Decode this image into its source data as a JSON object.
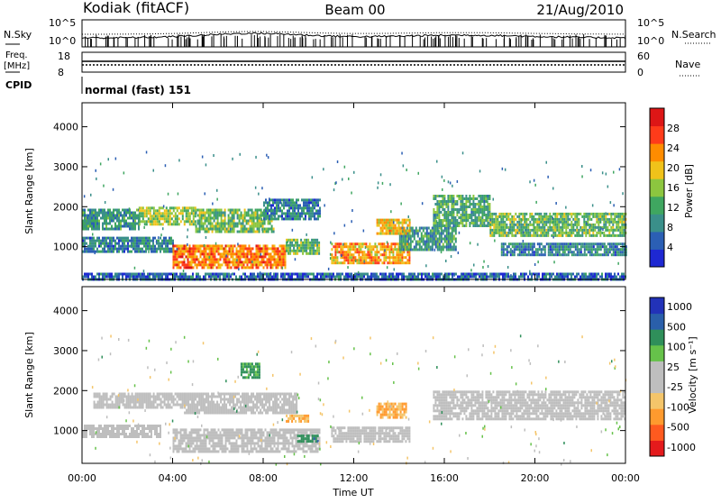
{
  "header": {
    "station": "Kodiak (fitACF)",
    "beam": "Beam 00",
    "date": "21/Aug/2010"
  },
  "top_panel": {
    "left_label": "N.Sky",
    "right_label": "N.Search",
    "left_ticks": [
      "10^5",
      "10^0"
    ],
    "right_ticks": [
      "10^5",
      "10^0"
    ]
  },
  "freq_panel": {
    "label_line1": "Freq.",
    "label_line2": "[MHz]",
    "left_ticks": [
      "18",
      "8"
    ],
    "right_label": "Nave",
    "right_ticks": [
      "60",
      "0"
    ]
  },
  "cpid": {
    "label": "CPID",
    "value": "normal (fast) 151"
  },
  "colors": {
    "power_scale": [
      "#1e28d2",
      "#2b5fb4",
      "#3a8f8a",
      "#3fa660",
      "#8cc63f",
      "#f0c21a",
      "#ff8c00",
      "#ff3b1a",
      "#dd1616"
    ],
    "velocity_scale": [
      "#e41a1c",
      "#ff5a1f",
      "#ff9a2e",
      "#f4c56a",
      "#bebebe",
      "#bebebe",
      "#66c24a",
      "#2f8f5a",
      "#2a5faa",
      "#2232b8"
    ],
    "ground_scatter": "#bebebe"
  },
  "chart_data": [
    {
      "type": "heatmap",
      "name": "power",
      "xlabel": "",
      "ylabel": "Slant Range [km]",
      "x_ticks": [
        "00:00",
        "04:00",
        "08:00",
        "12:00",
        "16:00",
        "20:00",
        "00:00"
      ],
      "xlim_hours": [
        0,
        24
      ],
      "ylim": [
        180,
        4600
      ],
      "y_ticks": [
        1000,
        2000,
        3000,
        4000
      ],
      "colorbar": {
        "label": "Power [dB]",
        "ticks": [
          4,
          8,
          12,
          16,
          20,
          24,
          28
        ],
        "range": [
          0,
          32
        ]
      },
      "regions": [
        {
          "t0": 0.0,
          "t1": 2.5,
          "r0": 1450,
          "r1": 1950,
          "power": 10
        },
        {
          "t0": 2.5,
          "t1": 5.0,
          "r0": 1550,
          "r1": 2000,
          "power": 16
        },
        {
          "t0": 5.0,
          "t1": 8.5,
          "r0": 1350,
          "r1": 1950,
          "power": 14
        },
        {
          "t0": 8.0,
          "t1": 10.5,
          "r0": 1700,
          "r1": 2200,
          "power": 8
        },
        {
          "t0": 0.0,
          "t1": 4.0,
          "r0": 850,
          "r1": 1250,
          "power": 8
        },
        {
          "t0": 4.0,
          "t1": 9.0,
          "r0": 450,
          "r1": 1050,
          "power": 24
        },
        {
          "t0": 9.0,
          "t1": 10.5,
          "r0": 800,
          "r1": 1200,
          "power": 14
        },
        {
          "t0": 11.0,
          "t1": 14.5,
          "r0": 600,
          "r1": 1100,
          "power": 22
        },
        {
          "t0": 14.0,
          "t1": 16.5,
          "r0": 900,
          "r1": 1500,
          "power": 10
        },
        {
          "t0": 15.5,
          "t1": 18.0,
          "r0": 1500,
          "r1": 2300,
          "power": 12
        },
        {
          "t0": 18.0,
          "t1": 24.0,
          "r0": 1300,
          "r1": 1850,
          "power": 14
        },
        {
          "t0": 18.5,
          "t1": 24.0,
          "r0": 800,
          "r1": 1100,
          "power": 8
        },
        {
          "t0": 13.0,
          "t1": 14.5,
          "r0": 1300,
          "r1": 1700,
          "power": 20
        },
        {
          "t0": 0.0,
          "t1": 24.0,
          "r0": 180,
          "r1": 350,
          "power": 6
        }
      ]
    },
    {
      "type": "heatmap",
      "name": "velocity",
      "xlabel": "Time UT",
      "ylabel": "Slant Range [km]",
      "x_ticks": [
        "00:00",
        "04:00",
        "08:00",
        "12:00",
        "16:00",
        "20:00",
        "00:00"
      ],
      "xlim_hours": [
        0,
        24
      ],
      "ylim": [
        180,
        4600
      ],
      "y_ticks": [
        1000,
        2000,
        3000,
        4000
      ],
      "colorbar": {
        "label": "Velocity [m s⁻¹]",
        "ticks": [
          "1000",
          "500",
          "100",
          "25",
          "-25",
          "-100",
          "-500",
          "-1000"
        ]
      },
      "regions": [
        {
          "t0": 0.5,
          "t1": 4.5,
          "r0": 1550,
          "r1": 1950,
          "velocity": 0
        },
        {
          "t0": 4.5,
          "t1": 9.5,
          "r0": 1450,
          "r1": 1950,
          "velocity": 0
        },
        {
          "t0": 4.0,
          "t1": 10.5,
          "r0": 500,
          "r1": 1050,
          "velocity": 0
        },
        {
          "t0": 11.0,
          "t1": 14.5,
          "r0": 700,
          "r1": 1100,
          "velocity": 0
        },
        {
          "t0": 15.5,
          "t1": 24.0,
          "r0": 1300,
          "r1": 2000,
          "velocity": 0
        },
        {
          "t0": 0.0,
          "t1": 3.5,
          "r0": 850,
          "r1": 1150,
          "velocity": 0
        },
        {
          "t0": 7.0,
          "t1": 7.8,
          "r0": 2350,
          "r1": 2700,
          "velocity": 60
        },
        {
          "t0": 13.0,
          "t1": 14.3,
          "r0": 1300,
          "r1": 1700,
          "velocity": -100
        },
        {
          "t0": 9.5,
          "t1": 10.4,
          "r0": 750,
          "r1": 900,
          "velocity": 80
        },
        {
          "t0": 9.0,
          "t1": 10.0,
          "r0": 1200,
          "r1": 1400,
          "velocity": -100
        }
      ]
    }
  ]
}
